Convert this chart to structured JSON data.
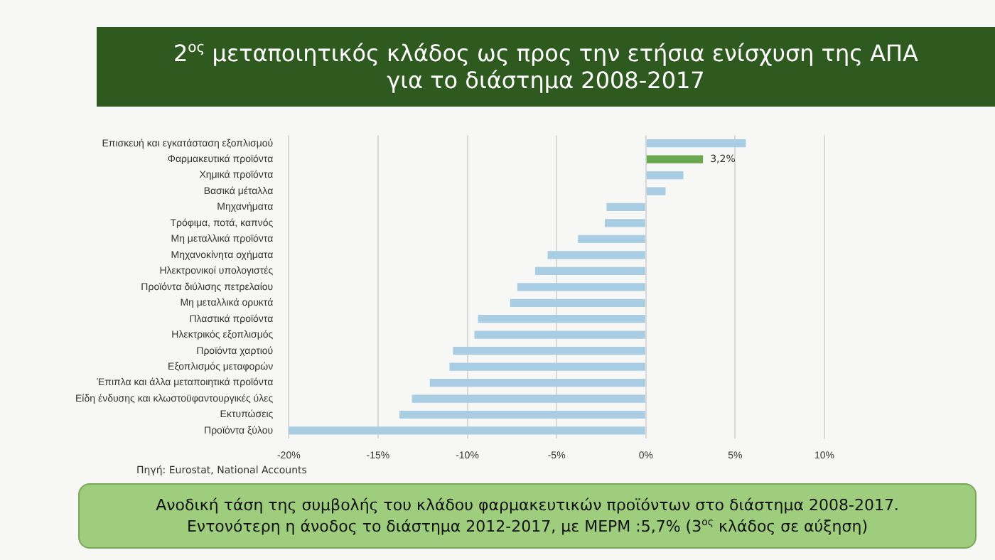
{
  "chart_data": {
    "type": "bar",
    "orientation": "horizontal",
    "title": "2$^{ος}$ μεταποιητικός κλάδος ως προς την ετήσια ενίσχυση της ΑΠΑ για το διάστημα 2008-2017",
    "categories": [
      "Επισκευή και εγκατάσταση εξοπλισμού",
      "Φαρμακευτικά προϊόντα",
      "Χημικά προϊόντα",
      "Βασικά μέταλλα",
      "Μηχανήματα",
      "Τρόφιμα, ποτά, καπνός",
      "Μη μεταλλικά προϊόντα",
      "Μηχανοκίνητα οχήματα",
      "Ηλεκτρονικοί υπολογιστές",
      "Προϊόντα διύλισης πετρελαίου",
      "Μη μεταλλικά ορυκτά",
      "Πλαστικά προϊόντα",
      "Ηλεκτρικός εξοπλισμός",
      "Προϊόντα χαρτιού",
      "Εξοπλισμός μεταφορών",
      "Έπιπλα και άλλα μεταποιητικά προϊόντα",
      "Είδη ένδυσης και κλωστοϋφαντουργικές ύλες",
      "Εκτυπώσεις",
      "Προϊόντα ξύλου"
    ],
    "values": [
      5.6,
      3.2,
      2.1,
      1.1,
      -2.2,
      -2.3,
      -3.8,
      -5.5,
      -6.2,
      -7.2,
      -7.6,
      -9.4,
      -9.6,
      -10.8,
      -11.0,
      -12.1,
      -13.1,
      -13.8,
      -20.0
    ],
    "colors": [
      "#a9cde3",
      "#6aa84f",
      "#a9cde3",
      "#a9cde3",
      "#a9cde3",
      "#a9cde3",
      "#a9cde3",
      "#a9cde3",
      "#a9cde3",
      "#a9cde3",
      "#a9cde3",
      "#a9cde3",
      "#a9cde3",
      "#a9cde3",
      "#a9cde3",
      "#a9cde3",
      "#a9cde3",
      "#a9cde3",
      "#a9cde3"
    ],
    "value_labels": [
      null,
      "3,2%",
      null,
      null,
      null,
      null,
      null,
      null,
      null,
      null,
      null,
      null,
      null,
      null,
      null,
      null,
      null,
      null,
      null
    ],
    "xlim": [
      -20,
      10
    ],
    "xticks": [
      {
        "value": -20,
        "label": "-20%"
      },
      {
        "value": -15,
        "label": "-15%"
      },
      {
        "value": -10,
        "label": "-10%"
      },
      {
        "value": -5,
        "label": "-5%"
      },
      {
        "value": 0,
        "label": "0%"
      },
      {
        "value": 5,
        "label": "5%"
      },
      {
        "value": 10,
        "label": "10%"
      }
    ],
    "grid": "x",
    "legend": false,
    "annotations": [
      "Πηγή: Eurostat, National Accounts",
      "Ανοδική τάση της συμβολής του κλάδου φαρμακευτικών προϊόντων στο διάστημα 2008-2017.\nΕντονότερη η άνοδος το διάστημα 2012-2017, με ΜΕΡΜ :5,7% (3$^{ος}$ κλάδος σε αύξηση)"
    ]
  }
}
